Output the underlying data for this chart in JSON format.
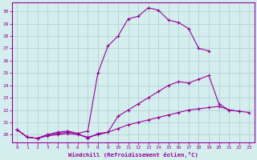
{
  "xlabel": "Windchill (Refroidissement éolien,°C)",
  "background_color": "#d4eeee",
  "grid_color": "#b0cccc",
  "line_color": "#990099",
  "xlim": [
    -0.5,
    23.5
  ],
  "ylim": [
    19.4,
    30.7
  ],
  "yticks": [
    20,
    21,
    22,
    23,
    24,
    25,
    26,
    27,
    28,
    29,
    30
  ],
  "xticks": [
    0,
    1,
    2,
    3,
    4,
    5,
    6,
    7,
    8,
    9,
    10,
    11,
    12,
    13,
    14,
    15,
    16,
    17,
    18,
    19,
    20,
    21,
    22,
    23
  ],
  "line1_x": [
    0,
    1,
    2,
    3,
    4,
    5,
    6,
    7,
    8,
    9,
    10,
    11,
    12,
    13,
    14,
    15,
    16,
    17,
    18,
    19
  ],
  "line1_y": [
    20.4,
    19.8,
    19.7,
    20.0,
    20.2,
    20.3,
    20.1,
    20.3,
    25.0,
    27.2,
    28.0,
    29.4,
    29.6,
    30.3,
    30.1,
    29.3,
    29.1,
    28.6,
    27.0,
    26.8
  ],
  "line2_x": [
    0,
    1,
    2,
    3,
    4,
    5,
    6,
    7,
    8,
    9,
    10,
    11,
    12,
    13,
    14,
    15,
    16,
    17,
    18,
    19,
    20,
    21,
    22
  ],
  "line2_y": [
    20.4,
    19.8,
    19.7,
    20.0,
    20.1,
    20.2,
    20.1,
    19.7,
    20.1,
    20.2,
    21.5,
    22.0,
    22.5,
    23.0,
    23.5,
    24.0,
    24.3,
    24.2,
    24.5,
    24.8,
    22.5,
    22.0,
    21.9
  ],
  "line3_x": [
    0,
    1,
    2,
    3,
    4,
    5,
    6,
    7,
    8,
    9,
    10,
    11,
    12,
    13,
    14,
    15,
    16,
    17,
    18,
    19,
    20,
    21,
    22,
    23
  ],
  "line3_y": [
    20.4,
    19.8,
    19.7,
    19.9,
    20.0,
    20.1,
    20.0,
    19.8,
    20.0,
    20.2,
    20.5,
    20.8,
    21.0,
    21.2,
    21.4,
    21.6,
    21.8,
    22.0,
    22.1,
    22.2,
    22.3,
    22.0,
    21.9,
    21.8
  ]
}
